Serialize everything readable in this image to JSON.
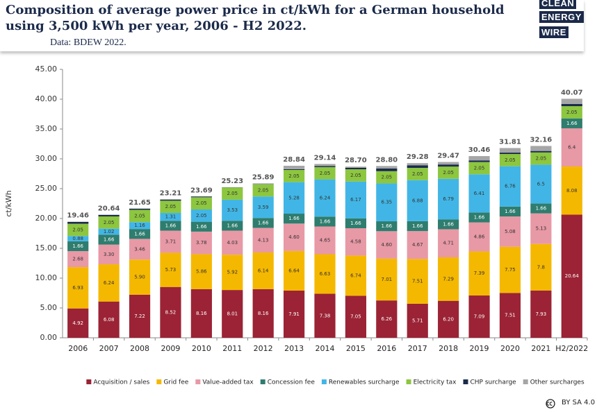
{
  "header": {
    "title": [
      "Composition of average power price in ct/kWh for a German household",
      "using 3,500 kWh per year, 2006 - H2 2022."
    ],
    "source": "Data: BDEW 2022."
  },
  "logo": [
    "CLEAN",
    "ENERGY",
    "WIRE"
  ],
  "license": "BY SA 4.0",
  "chart_data": {
    "type": "stacked-bar",
    "ylabel": "ct/kWh",
    "categories": [
      "2006",
      "2007",
      "2008",
      "2009",
      "2010",
      "2011",
      "2012",
      "2013",
      "2014",
      "2015",
      "2016",
      "2017",
      "2018",
      "2019",
      "2020",
      "2021",
      "H2/2022"
    ],
    "ylim": [
      0,
      45
    ],
    "yticks": [
      {
        "value": 0,
        "label": "0.00"
      },
      {
        "value": 5,
        "label": "5.00"
      },
      {
        "value": 10,
        "label": "10.00"
      },
      {
        "value": 15,
        "label": "15.00"
      },
      {
        "value": 20,
        "label": "20.00"
      },
      {
        "value": 25,
        "label": "25.00"
      },
      {
        "value": 30,
        "label": "30.00"
      },
      {
        "value": 35,
        "label": "35.00"
      },
      {
        "value": 40,
        "label": "40.00"
      },
      {
        "value": 45,
        "label": "45.00"
      }
    ],
    "legend": "bottom",
    "series": [
      {
        "name": "Acquisition / sales",
        "color": "#9b2335",
        "label_color": "#ffffff",
        "values": [
          4.92,
          6.08,
          7.22,
          8.52,
          8.16,
          8.01,
          8.16,
          7.91,
          7.38,
          7.05,
          6.26,
          5.71,
          6.2,
          7.09,
          7.51,
          7.93,
          20.64
        ],
        "value_labels": [
          "4.92",
          "6.08",
          "7.22",
          "8.52",
          "8.16",
          "8.01",
          "8.16",
          "7.91",
          "7.38",
          "7.05",
          "6.26",
          "5.71",
          "6.20",
          "7.09",
          "7.51",
          "7.93",
          "20.64"
        ]
      },
      {
        "name": "Grid fee",
        "color": "#f5b800",
        "label_color": "#333333",
        "values": [
          6.93,
          6.24,
          5.9,
          5.73,
          5.86,
          5.92,
          6.14,
          6.64,
          6.63,
          6.74,
          7.01,
          7.51,
          7.29,
          7.39,
          7.75,
          7.8,
          8.08
        ],
        "value_labels": [
          "6.93",
          "6.24",
          "5.90",
          "5.73",
          "5.86",
          "5.92",
          "6.14",
          "6.64",
          "6.63",
          "6.74",
          "7.01",
          "7.51",
          "7.29",
          "7.39",
          "7.75",
          "7.8",
          "8.08"
        ]
      },
      {
        "name": "Value-added tax",
        "color": "#e899a6",
        "label_color": "#333333",
        "values": [
          2.68,
          3.3,
          3.46,
          3.71,
          3.78,
          4.03,
          4.13,
          4.6,
          4.65,
          4.58,
          4.6,
          4.67,
          4.71,
          4.86,
          5.08,
          5.13,
          6.4
        ],
        "value_labels": [
          "2.68",
          "3.30",
          "3.46",
          "3.71",
          "3.78",
          "4.03",
          "4.13",
          "4.60",
          "4.65",
          "4.58",
          "4.60",
          "4.67",
          "4.71",
          "4.86",
          "5.08",
          "5.13",
          "6.4"
        ]
      },
      {
        "name": "Concession fee",
        "color": "#2e7d6e",
        "label_color": "#ffffff",
        "values": [
          1.66,
          1.66,
          1.66,
          1.66,
          1.66,
          1.66,
          1.66,
          1.66,
          1.66,
          1.66,
          1.66,
          1.66,
          1.66,
          1.66,
          1.66,
          1.66,
          1.66
        ],
        "value_labels": [
          "1.66",
          "1.66",
          "1.66",
          "1.66",
          "1.66",
          "1.66",
          "1.66",
          "1.66",
          "1.66",
          "1.66",
          "1.66",
          "1.66",
          "1.66",
          "1.66",
          "1.66",
          "1.66",
          "1.66"
        ]
      },
      {
        "name": "Renewables surcharge",
        "color": "#41b6e6",
        "label_color": "#333333",
        "values": [
          0.88,
          1.02,
          1.16,
          1.31,
          2.05,
          3.53,
          3.59,
          5.28,
          6.24,
          6.17,
          6.35,
          6.88,
          6.79,
          6.41,
          6.76,
          6.5,
          null
        ],
        "value_labels": [
          "0.88",
          "1.02",
          "1.16",
          "1.31",
          "2.05",
          "3.53",
          "3.59",
          "5.28",
          "6.24",
          "6.17",
          "6.35",
          "6.88",
          "6.79",
          "6.41",
          "6.76",
          "6.5",
          null
        ]
      },
      {
        "name": "Electricity tax",
        "color": "#8dc63f",
        "label_color": "#333333",
        "values": [
          2.05,
          2.05,
          2.05,
          2.05,
          2.05,
          2.05,
          2.05,
          2.05,
          2.05,
          2.05,
          2.05,
          2.05,
          2.05,
          2.05,
          2.05,
          2.05,
          2.05
        ],
        "value_labels": [
          "2.05",
          "2.05",
          "2.05",
          "2.05",
          "2.05",
          "2.05",
          "2.05",
          "2.05",
          "2.05",
          "2.05",
          "2.05",
          "2.05",
          "2.05",
          "2.05",
          "2.05",
          "2.05",
          "2.05"
        ]
      },
      {
        "name": "CHP surcharge",
        "color": "#1a2b4c",
        "values": [
          0.31,
          0.26,
          0.2,
          0.2,
          0.13,
          0.03,
          0.02,
          0.13,
          0.18,
          0.25,
          0.45,
          0.44,
          0.35,
          0.28,
          0.23,
          0.25,
          0.38
        ]
      },
      {
        "name": "Other surcharges",
        "color": "#a6a6a6",
        "values": [
          0.03,
          0.03,
          0,
          0.03,
          0,
          0,
          0.14,
          0.57,
          0.35,
          0.2,
          0.42,
          0.36,
          0.42,
          0.72,
          0.77,
          0.84,
          0.86
        ]
      }
    ],
    "totals": [
      19.46,
      20.64,
      21.65,
      23.21,
      23.69,
      25.23,
      25.89,
      28.84,
      29.14,
      28.7,
      28.8,
      29.28,
      29.47,
      30.46,
      31.81,
      32.16,
      40.07
    ],
    "total_labels": [
      "19.46",
      "20.64",
      "21.65",
      "23.21",
      "23.69",
      "25.23",
      "25.89",
      "28.84",
      "29.14",
      "28.70",
      "28.80",
      "29.28",
      "29.47",
      "30.46",
      "31.81",
      "32.16",
      "40.07"
    ]
  }
}
